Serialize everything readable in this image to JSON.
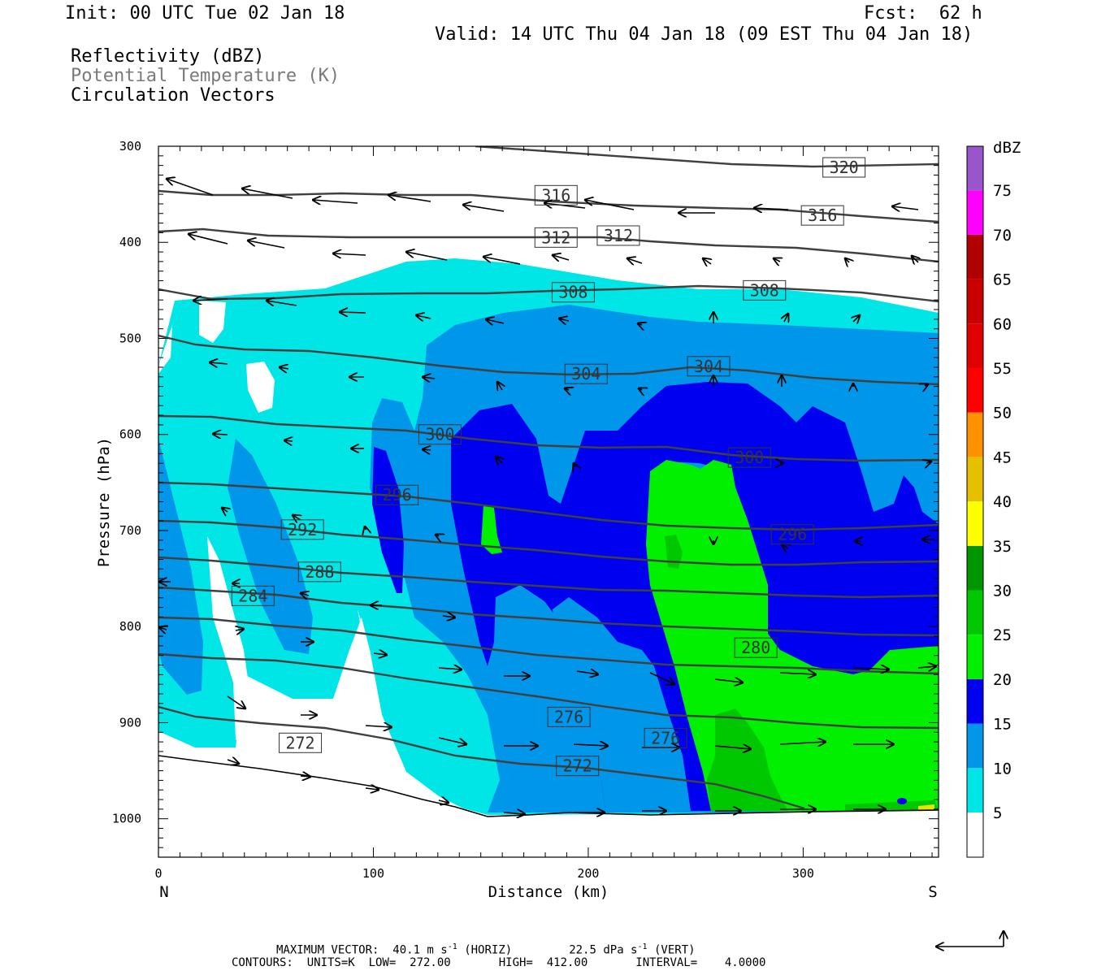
{
  "header": {
    "init": "Init: 00 UTC Tue 02 Jan 18",
    "fcst": "Fcst:  62 h",
    "valid": "Valid: 14 UTC Thu 04 Jan 18 (09 EST Thu 04 Jan 18)",
    "fields": [
      "Reflectivity (dBZ)",
      "Potential Temperature (K)",
      "Circulation Vectors"
    ]
  },
  "footer": {
    "line1a": "MAXIMUM VECTOR:  40.1 m s",
    "line1b": "-1",
    "line1c": " (HORIZ)",
    "line1d": "22.5 dPa s",
    "line1e": "-1",
    "line1f": " (VERT)",
    "line2": "CONTOURS:  UNITS=K  LOW=  272.00       HIGH=  412.00       INTERVAL=    4.0000"
  },
  "colors": {
    "c5": "#00e6e6",
    "c10": "#0096ea",
    "c15": "#0000f0",
    "c20": "#00f000",
    "c25": "#00c800",
    "c30": "#009600",
    "c35": "#ffff00",
    "c40": "#e6c000",
    "c45": "#ff9000",
    "c50": "#ff0000",
    "c55": "#e00000",
    "c60": "#c80000",
    "c65": "#b00000",
    "c70": "#ff00ff",
    "c75": "#9955cc",
    "contour": "#404040"
  },
  "chart_data": {
    "type": "cross-section",
    "xlabel": "Distance (km)",
    "ylabel": "Pressure (hPa)",
    "xlim": [
      0,
      363
    ],
    "ylim": [
      1040,
      300
    ],
    "x_ticks": [
      0,
      100,
      200,
      300
    ],
    "y_ticks": [
      300,
      400,
      500,
      600,
      700,
      800,
      900,
      1000
    ],
    "x_end_labels": {
      "left": "N",
      "right": "S"
    },
    "colorbar": {
      "unit": "dBZ",
      "levels": [
        5,
        10,
        15,
        20,
        25,
        30,
        35,
        40,
        45,
        50,
        55,
        60,
        65,
        70,
        75
      ]
    },
    "contour_labels": [
      {
        "value": "320",
        "x": 319,
        "p": 322
      },
      {
        "value": "316",
        "x": 185,
        "p": 351
      },
      {
        "value": "316",
        "x": 309,
        "p": 372
      },
      {
        "value": "312",
        "x": 185,
        "p": 395
      },
      {
        "value": "312",
        "x": 214,
        "p": 393
      },
      {
        "value": "308",
        "x": 193,
        "p": 452
      },
      {
        "value": "308",
        "x": 282,
        "p": 450
      },
      {
        "value": "304",
        "x": 199,
        "p": 537
      },
      {
        "value": "304",
        "x": 256,
        "p": 529
      },
      {
        "value": "300",
        "x": 131,
        "p": 600
      },
      {
        "value": "300",
        "x": 275,
        "p": 624
      },
      {
        "value": "296",
        "x": 111,
        "p": 663
      },
      {
        "value": "296",
        "x": 295,
        "p": 704
      },
      {
        "value": "292",
        "x": 67,
        "p": 699
      },
      {
        "value": "288",
        "x": 75,
        "p": 743
      },
      {
        "value": "284",
        "x": 44,
        "p": 768
      },
      {
        "value": "280",
        "x": 278,
        "p": 822
      },
      {
        "value": "276",
        "x": 191,
        "p": 894
      },
      {
        "value": "276",
        "x": 236,
        "p": 916
      },
      {
        "value": "272",
        "x": 66,
        "p": 921
      },
      {
        "value": "272",
        "x": 195,
        "p": 945
      }
    ],
    "theta_levels": [
      272,
      276,
      280,
      284,
      288,
      292,
      296,
      300,
      304,
      308,
      312,
      316,
      320
    ]
  }
}
